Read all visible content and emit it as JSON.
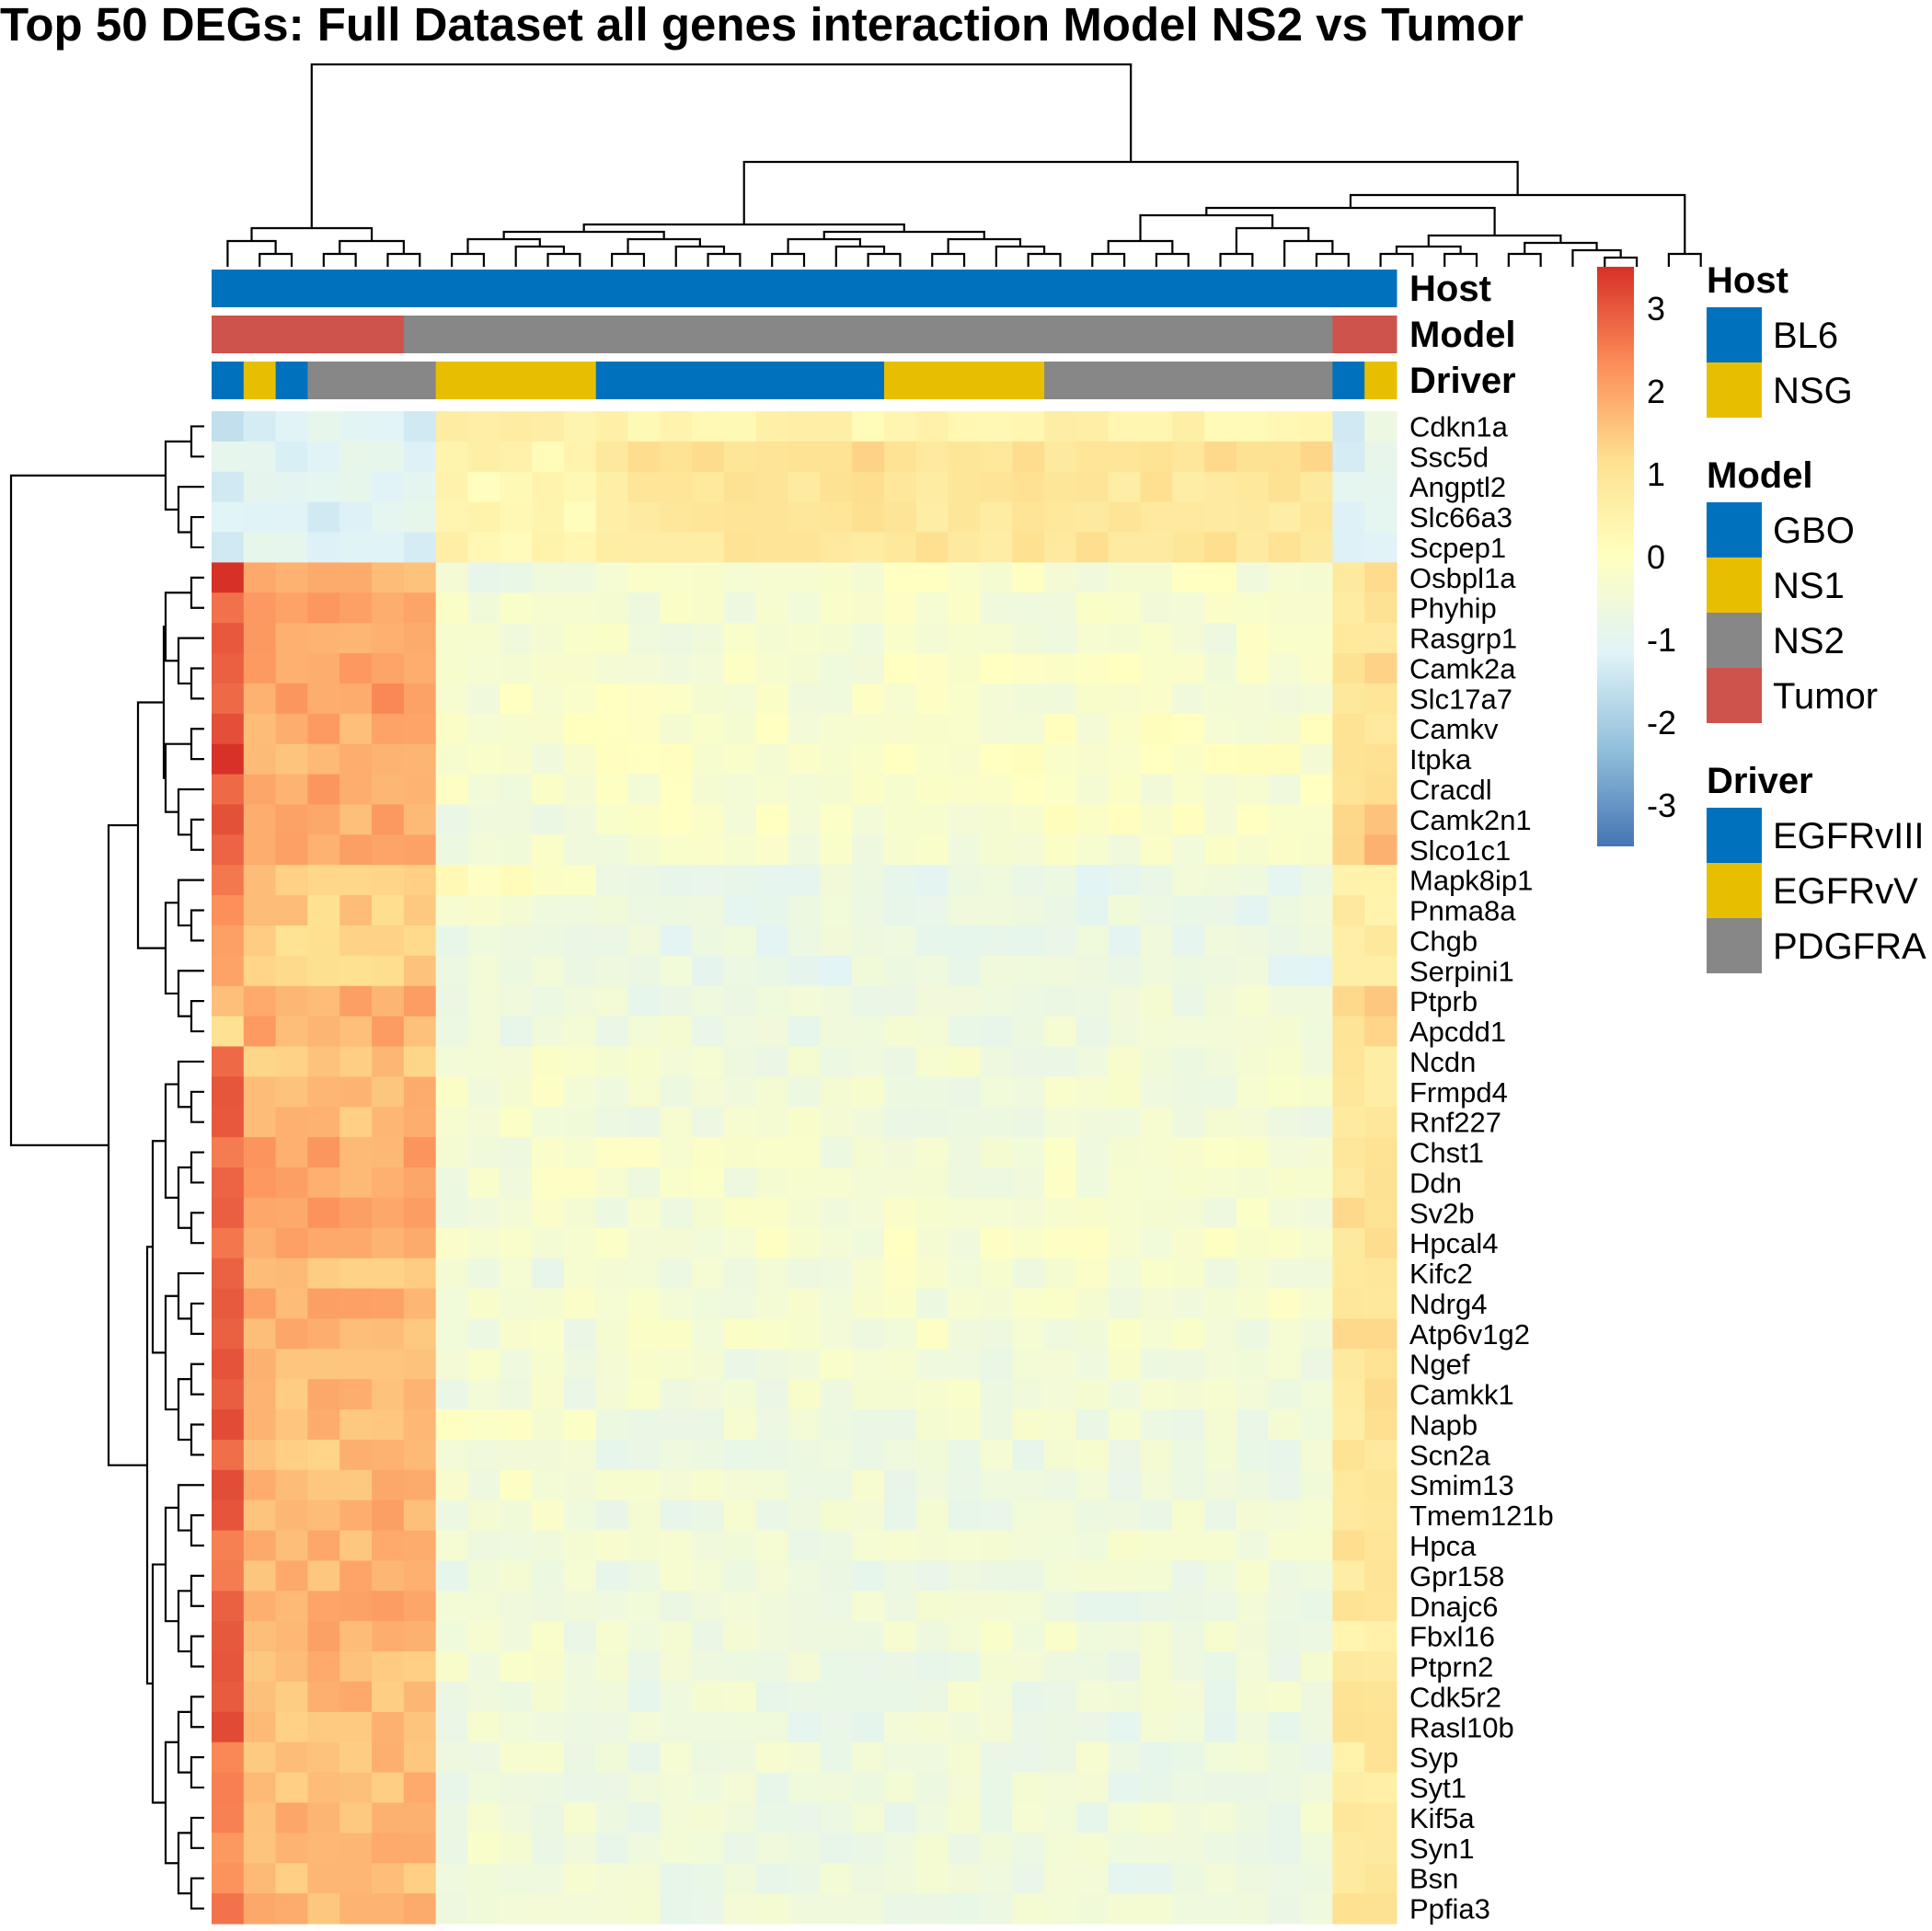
{
  "chart_data": {
    "type": "heatmap",
    "title": "Top 50 DEGs: Full Dataset all genes interaction Model NS2 vs Tumor",
    "scale": {
      "min": -3.5,
      "max": 3.5,
      "ticks": [
        3,
        2,
        1,
        0,
        -1,
        -2,
        -3
      ],
      "tick_labels": [
        "3",
        "2",
        "1",
        "0",
        "-1",
        "-2",
        "-3"
      ],
      "colors": [
        "#4575b4",
        "#91bfdb",
        "#e0f3f8",
        "#ffffbf",
        "#fee090",
        "#fc8d59",
        "#d73027"
      ]
    },
    "annotation_rows": [
      "Host",
      "Model",
      "Driver"
    ],
    "legends": [
      {
        "title": "Host",
        "items": [
          {
            "label": "BL6",
            "color": "#0072BD"
          },
          {
            "label": "NSG",
            "color": "#E8BF00"
          }
        ]
      },
      {
        "title": "Model",
        "items": [
          {
            "label": "GBO",
            "color": "#0072BD"
          },
          {
            "label": "NS1",
            "color": "#E8BF00"
          },
          {
            "label": "NS2",
            "color": "#878787"
          },
          {
            "label": "Tumor",
            "color": "#CD534C"
          }
        ]
      },
      {
        "title": "Driver",
        "items": [
          {
            "label": "EGFRvIII",
            "color": "#0072BD"
          },
          {
            "label": "EGFRvV",
            "color": "#E8BF00"
          },
          {
            "label": "PDGFRA",
            "color": "#878787"
          }
        ]
      }
    ],
    "column_groups": [
      {
        "n": 1,
        "host": "BL6",
        "model": "Tumor",
        "driver": "EGFRvIII",
        "cluster": "A"
      },
      {
        "n": 1,
        "host": "BL6",
        "model": "Tumor",
        "driver": "EGFRvV",
        "cluster": "A"
      },
      {
        "n": 1,
        "host": "BL6",
        "model": "Tumor",
        "driver": "EGFRvIII",
        "cluster": "A"
      },
      {
        "n": 3,
        "host": "BL6",
        "model": "Tumor",
        "driver": "PDGFRA",
        "cluster": "A"
      },
      {
        "n": 1,
        "host": "BL6",
        "model": "NS2",
        "driver": "PDGFRA",
        "cluster": "B"
      },
      {
        "n": 5,
        "host": "BL6",
        "model": "NS2",
        "driver": "EGFRvV",
        "cluster": "B"
      },
      {
        "n": 9,
        "host": "BL6",
        "model": "NS2",
        "driver": "EGFRvIII",
        "cluster": "B"
      },
      {
        "n": 5,
        "host": "BL6",
        "model": "NS2",
        "driver": "EGFRvV",
        "cluster": "B"
      },
      {
        "n": 9,
        "host": "BL6",
        "model": "NS2",
        "driver": "PDGFRA",
        "cluster": "C"
      },
      {
        "n": 1,
        "host": "BL6",
        "model": "Tumor",
        "driver": "EGFRvIII",
        "cluster": "D"
      },
      {
        "n": 1,
        "host": "BL6",
        "model": "Tumor",
        "driver": "EGFRvV",
        "cluster": "D"
      }
    ],
    "genes": [
      {
        "name": "Cdkn1a",
        "cluster": "down",
        "profile": [
          -1.7,
          -1.2,
          0.5,
          0.4,
          -1.5,
          -1.0
        ]
      },
      {
        "name": "Ssc5d",
        "cluster": "down",
        "profile": [
          -0.9,
          -1.1,
          0.4,
          1.1,
          -0.6,
          -1.0
        ]
      },
      {
        "name": "Angptl2",
        "cluster": "down",
        "profile": [
          -1.1,
          -1.0,
          0.2,
          0.9,
          -0.4,
          -0.8
        ]
      },
      {
        "name": "Slc66a3",
        "cluster": "down",
        "profile": [
          -1.3,
          -1.1,
          0.2,
          0.9,
          -0.3,
          -1.1
        ]
      },
      {
        "name": "Scpep1",
        "cluster": "down",
        "profile": [
          -1.4,
          -1.1,
          0.4,
          0.9,
          -0.4,
          -1.0
        ]
      },
      {
        "name": "Osbpl1a",
        "cluster": "up",
        "profile": [
          3.5,
          1.8,
          -0.6,
          -0.3,
          -0.5,
          1.0
        ]
      },
      {
        "name": "Phyhip",
        "cluster": "up",
        "profile": [
          2.8,
          1.9,
          -0.4,
          -0.4,
          -0.4,
          0.9
        ]
      },
      {
        "name": "Rasgrp1",
        "cluster": "up",
        "profile": [
          2.8,
          2.0,
          -0.3,
          -0.4,
          -0.4,
          1.0
        ]
      },
      {
        "name": "Camk2a",
        "cluster": "up",
        "profile": [
          2.8,
          1.9,
          -0.4,
          -0.3,
          -0.4,
          1.1
        ]
      },
      {
        "name": "Slc17a7",
        "cluster": "up",
        "profile": [
          2.8,
          2.1,
          -0.3,
          -0.3,
          -0.3,
          1.1
        ]
      },
      {
        "name": "Camkv",
        "cluster": "up",
        "profile": [
          2.9,
          1.9,
          -0.1,
          -0.2,
          -0.3,
          0.9
        ]
      },
      {
        "name": "Itpka",
        "cluster": "up",
        "profile": [
          3.2,
          1.8,
          -0.3,
          -0.2,
          -0.3,
          1.0
        ]
      },
      {
        "name": "Cracdl",
        "cluster": "up",
        "profile": [
          2.9,
          2.0,
          -0.3,
          -0.3,
          -0.4,
          1.0
        ]
      },
      {
        "name": "Camk2n1",
        "cluster": "up",
        "profile": [
          2.9,
          1.9,
          -0.5,
          -0.2,
          -0.4,
          1.4
        ]
      },
      {
        "name": "Slco1c1",
        "cluster": "up",
        "profile": [
          2.6,
          2.0,
          -0.4,
          -0.4,
          -0.4,
          1.6
        ]
      },
      {
        "name": "Mapk8ip1",
        "cluster": "up",
        "profile": [
          2.3,
          1.5,
          0.0,
          -0.8,
          0.9,
          0.5
        ]
      },
      {
        "name": "Pnma8a",
        "cluster": "up",
        "profile": [
          2.0,
          1.4,
          -0.5,
          -0.8,
          1.2,
          0.6
        ]
      },
      {
        "name": "Chgb",
        "cluster": "up",
        "profile": [
          1.9,
          1.3,
          -0.6,
          -0.8,
          1.3,
          0.6
        ]
      },
      {
        "name": "Serpini1",
        "cluster": "up",
        "profile": [
          1.8,
          1.4,
          -0.6,
          -0.8,
          1.1,
          0.6
        ]
      },
      {
        "name": "Ptprb",
        "cluster": "up",
        "profile": [
          1.9,
          1.9,
          -0.5,
          -0.6,
          0.2,
          1.5
        ]
      },
      {
        "name": "Apcdd1",
        "cluster": "up",
        "profile": [
          1.4,
          1.9,
          -0.6,
          -0.6,
          0.6,
          1.3
        ]
      },
      {
        "name": "Ncdn",
        "cluster": "up",
        "profile": [
          3.0,
          1.6,
          -0.2,
          -0.5,
          0.0,
          0.7
        ]
      },
      {
        "name": "Frmpd4",
        "cluster": "up",
        "profile": [
          3.0,
          1.8,
          -0.4,
          -0.5,
          0.2,
          0.8
        ]
      },
      {
        "name": "Rnf227",
        "cluster": "up",
        "profile": [
          2.9,
          1.7,
          -0.4,
          -0.5,
          0.3,
          0.9
        ]
      },
      {
        "name": "Chst1",
        "cluster": "up",
        "profile": [
          2.8,
          2.0,
          -0.5,
          -0.4,
          0.3,
          1.0
        ]
      },
      {
        "name": "Ddn",
        "cluster": "up",
        "profile": [
          2.8,
          1.9,
          -0.4,
          -0.4,
          0.3,
          1.0
        ]
      },
      {
        "name": "Sv2b",
        "cluster": "up",
        "profile": [
          2.8,
          2.0,
          -0.4,
          -0.4,
          0.2,
          1.0
        ]
      },
      {
        "name": "Hpcal4",
        "cluster": "up",
        "profile": [
          2.8,
          1.9,
          -0.4,
          -0.3,
          0.3,
          1.0
        ]
      },
      {
        "name": "Kifc2",
        "cluster": "up",
        "profile": [
          2.9,
          1.6,
          -0.6,
          -0.4,
          0.4,
          1.0
        ]
      },
      {
        "name": "Ndrg4",
        "cluster": "up",
        "profile": [
          2.9,
          1.8,
          -0.4,
          -0.4,
          0.5,
          1.0
        ]
      },
      {
        "name": "Atp6v1g2",
        "cluster": "up",
        "profile": [
          2.9,
          1.7,
          -0.5,
          -0.4,
          0.5,
          1.0
        ]
      },
      {
        "name": "Ngef",
        "cluster": "up",
        "profile": [
          2.9,
          1.8,
          -0.4,
          -0.5,
          0.5,
          1.0
        ]
      },
      {
        "name": "Camkk1",
        "cluster": "up",
        "profile": [
          2.9,
          1.7,
          -0.5,
          -0.5,
          0.6,
          1.0
        ]
      },
      {
        "name": "Napb",
        "cluster": "up",
        "profile": [
          2.9,
          1.7,
          -0.3,
          -0.5,
          0.8,
          0.9
        ]
      },
      {
        "name": "Scn2a",
        "cluster": "up",
        "profile": [
          3.0,
          1.6,
          -0.5,
          -0.6,
          0.8,
          0.8
        ]
      },
      {
        "name": "Smim13",
        "cluster": "up",
        "profile": [
          2.9,
          1.7,
          -0.4,
          -0.6,
          0.7,
          0.9
        ]
      },
      {
        "name": "Tmem121b",
        "cluster": "up",
        "profile": [
          3.1,
          1.8,
          -0.5,
          -0.6,
          0.6,
          0.9
        ]
      },
      {
        "name": "Hpca",
        "cluster": "up",
        "profile": [
          2.8,
          1.8,
          -0.6,
          -0.5,
          0.8,
          1.0
        ]
      },
      {
        "name": "Gpr158",
        "cluster": "up",
        "profile": [
          2.7,
          1.7,
          -0.6,
          -0.6,
          0.8,
          0.9
        ]
      },
      {
        "name": "Dnajc6",
        "cluster": "up",
        "profile": [
          2.8,
          1.8,
          -0.6,
          -0.6,
          0.8,
          0.9
        ]
      },
      {
        "name": "Fbxl16",
        "cluster": "up",
        "profile": [
          3.0,
          1.8,
          -0.5,
          -0.5,
          0.8,
          0.6
        ]
      },
      {
        "name": "Ptprn2",
        "cluster": "up",
        "profile": [
          2.8,
          1.7,
          -0.5,
          -0.6,
          0.8,
          0.9
        ]
      },
      {
        "name": "Cdk5r2",
        "cluster": "up",
        "profile": [
          2.8,
          1.7,
          -0.6,
          -0.6,
          0.9,
          0.9
        ]
      },
      {
        "name": "Rasl10b",
        "cluster": "up",
        "profile": [
          2.9,
          1.6,
          -0.6,
          -0.7,
          0.9,
          0.8
        ]
      },
      {
        "name": "Syp",
        "cluster": "up",
        "profile": [
          2.4,
          1.7,
          -0.5,
          -0.6,
          0.8,
          0.8
        ]
      },
      {
        "name": "Syt1",
        "cluster": "up",
        "profile": [
          2.3,
          1.7,
          -0.6,
          -0.7,
          0.8,
          0.8
        ]
      },
      {
        "name": "Kif5a",
        "cluster": "up",
        "profile": [
          2.3,
          1.7,
          -0.6,
          -0.6,
          0.8,
          0.9
        ]
      },
      {
        "name": "Syn1",
        "cluster": "up",
        "profile": [
          2.4,
          1.7,
          -0.5,
          -0.6,
          0.8,
          0.9
        ]
      },
      {
        "name": "Bsn",
        "cluster": "up",
        "profile": [
          2.5,
          1.7,
          -0.5,
          -0.7,
          0.9,
          0.9
        ]
      },
      {
        "name": "Ppfia3",
        "cluster": "up",
        "profile": [
          2.4,
          1.7,
          -0.5,
          -0.6,
          0.9,
          0.9
        ]
      }
    ]
  }
}
